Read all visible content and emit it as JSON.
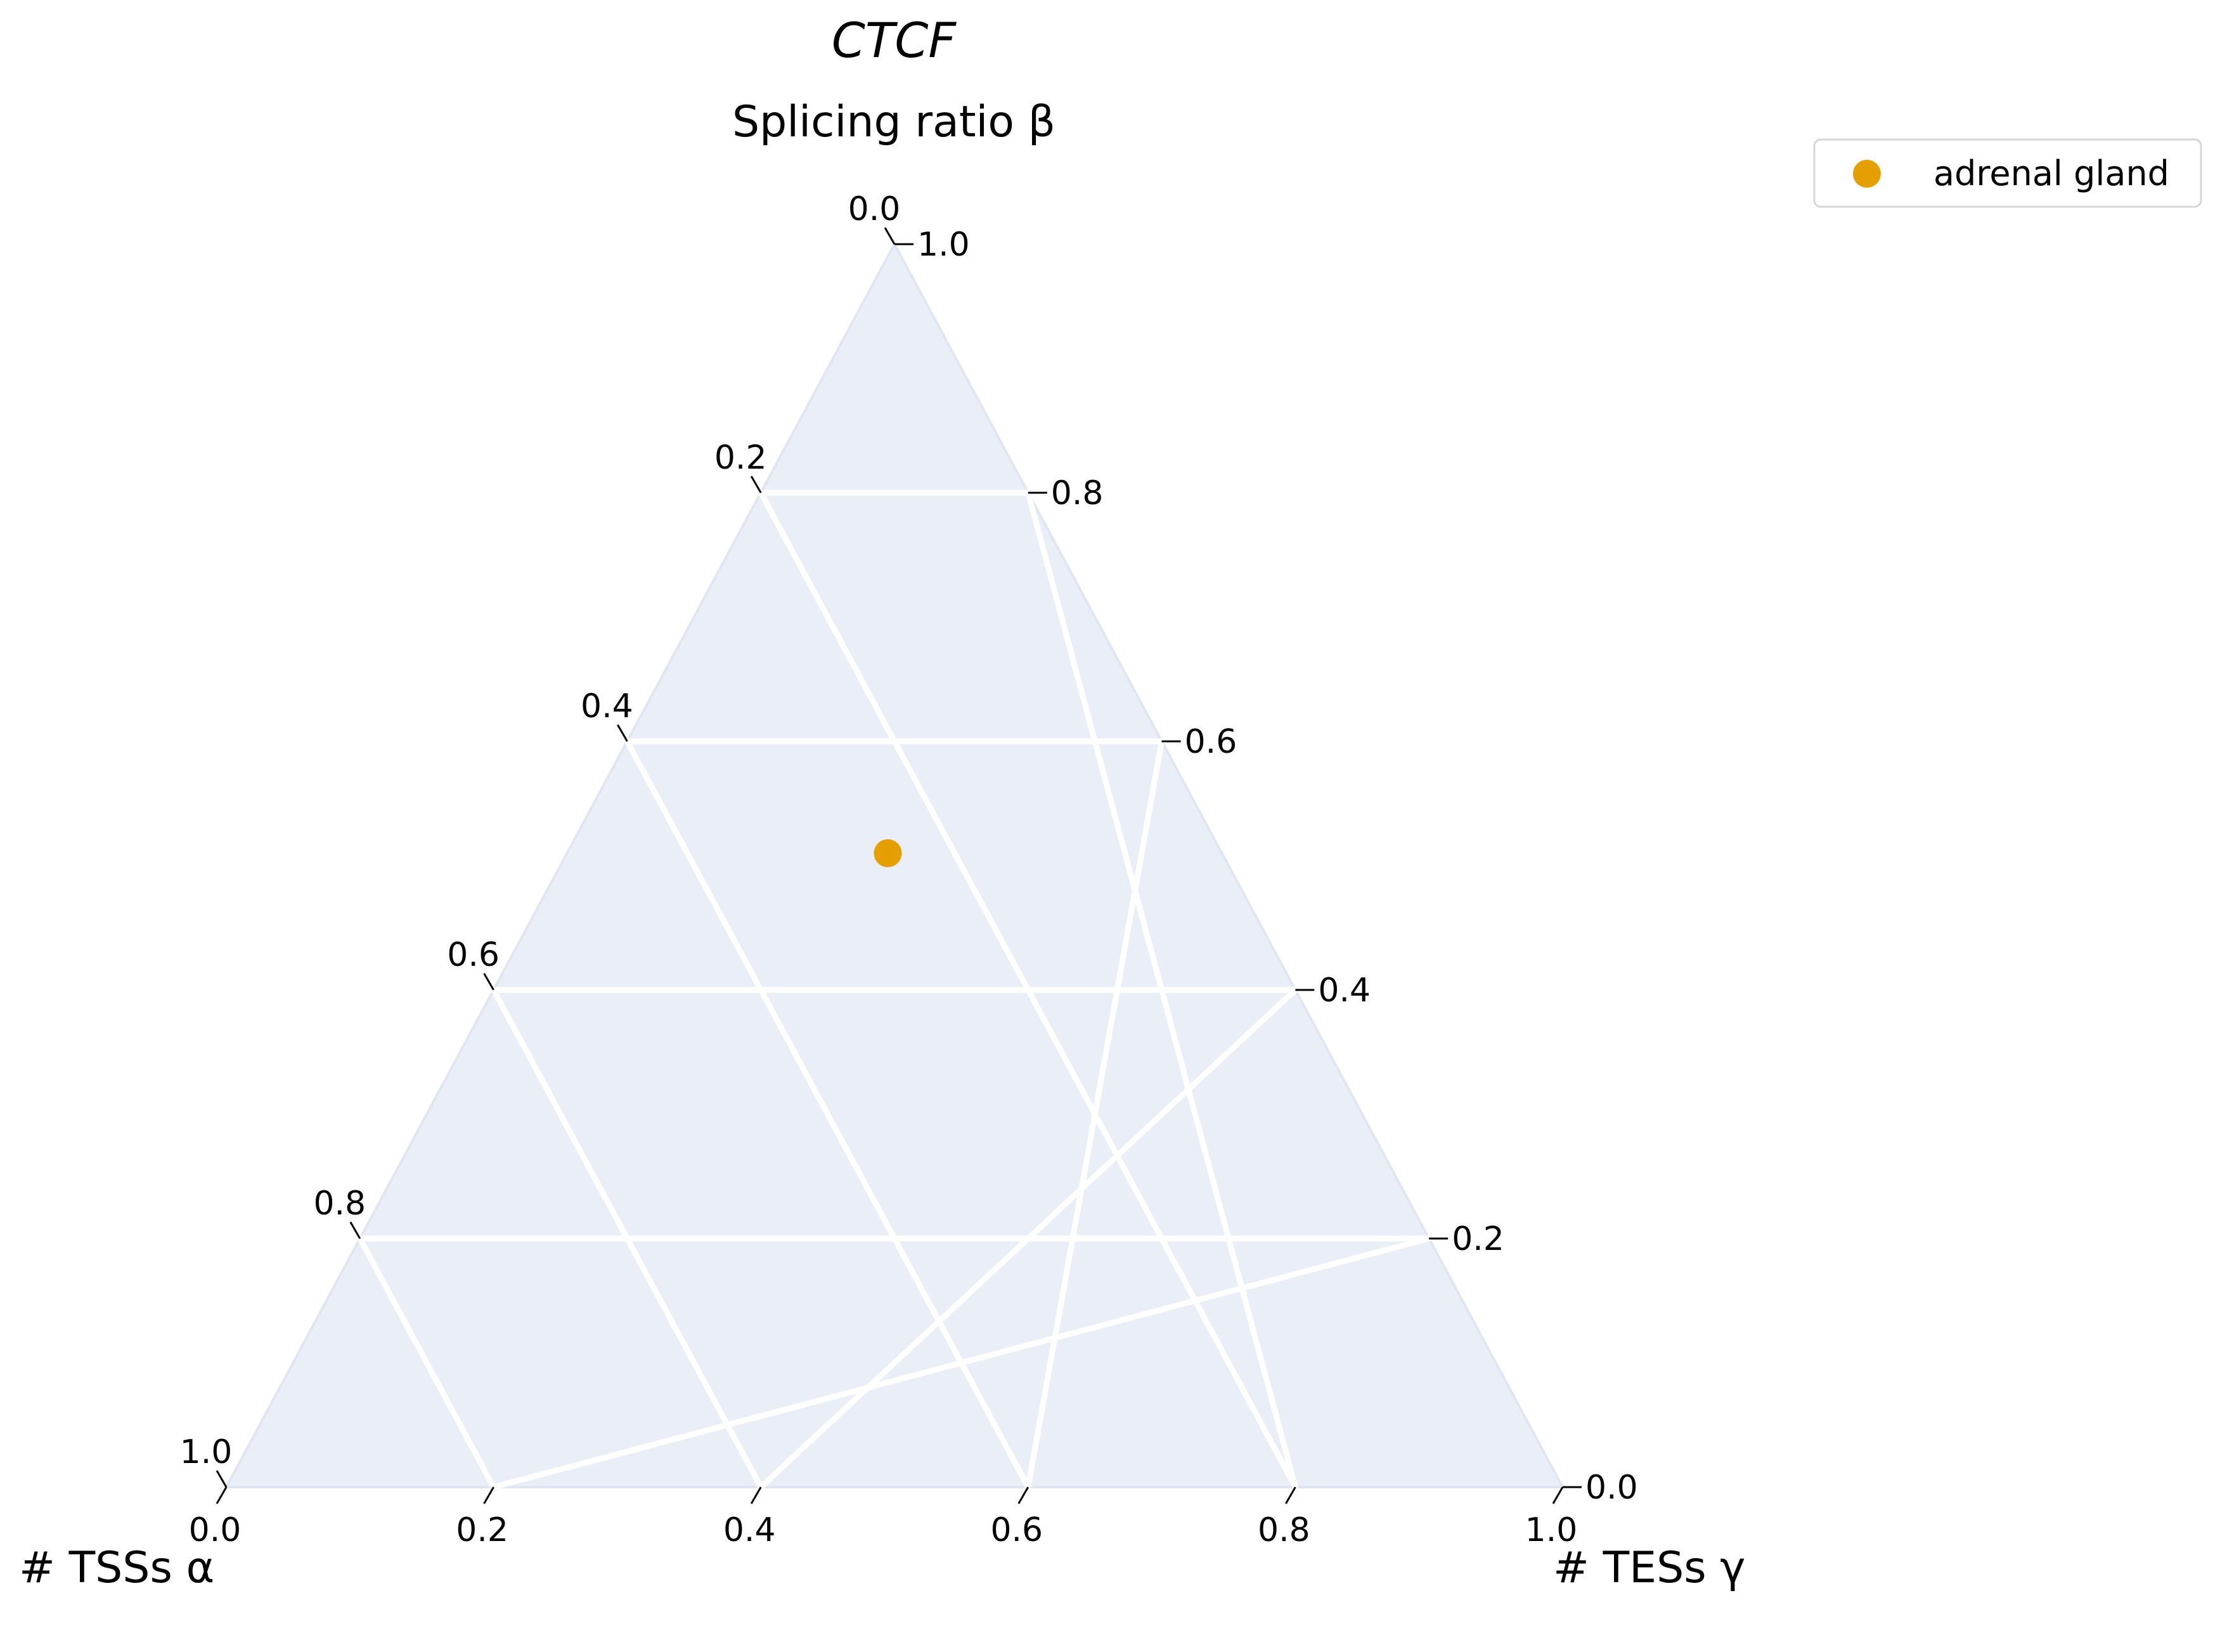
{
  "chart_data": {
    "type": "scatter",
    "subtype": "ternary",
    "title": "CTCF",
    "axes": {
      "top": {
        "label": "Splicing ratio β",
        "key": "b"
      },
      "left": {
        "label": "# TSSs α",
        "key": "a"
      },
      "right": {
        "label": "# TESs γ",
        "key": "c"
      }
    },
    "ticks": {
      "left_labels": [
        "0.0",
        "0.2",
        "0.4",
        "0.6",
        "0.8",
        "1.0"
      ],
      "right_labels": [
        "1.0",
        "0.8",
        "0.6",
        "0.4",
        "0.2",
        "0.0"
      ],
      "bottom_labels": [
        "0.0",
        "0.2",
        "0.4",
        "0.6",
        "0.8",
        "1.0"
      ]
    },
    "grid": true,
    "background_color": "#eaeff7",
    "grid_color": "#ffffff",
    "series": [
      {
        "name": "adrenal gland",
        "color": "#e69f00",
        "points": [
          {
            "a": 0.25,
            "b": 0.51,
            "c": 0.24
          }
        ]
      }
    ],
    "legend": {
      "position": "top-right",
      "entries": [
        "adrenal gland"
      ]
    }
  }
}
